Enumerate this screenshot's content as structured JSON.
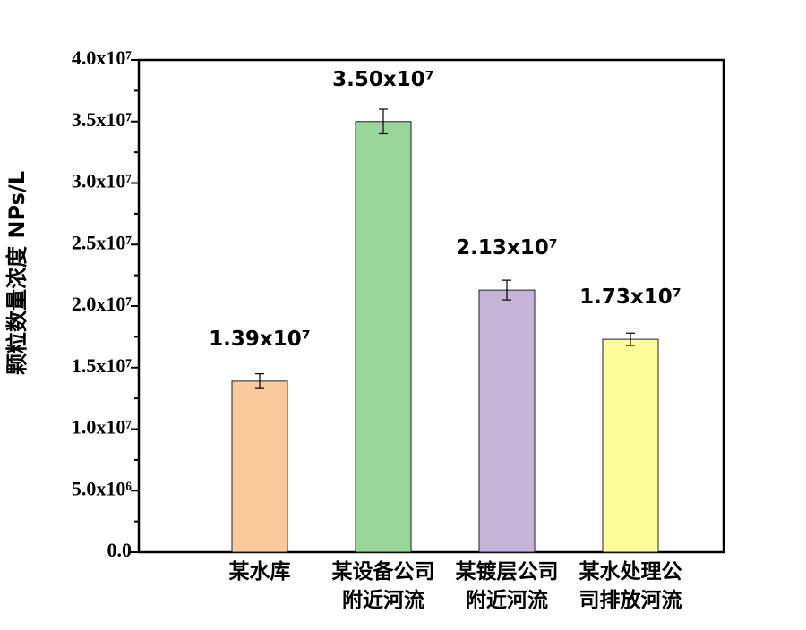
{
  "chart_data": {
    "type": "bar",
    "y_label": "颗粒数量浓度 NPs/L",
    "categories": [
      [
        "某水库"
      ],
      [
        "某设备公司",
        "附近河流"
      ],
      [
        "某镀层公司",
        "附近河流"
      ],
      [
        "某水处理公",
        "司排放河流"
      ]
    ],
    "values": [
      13900000,
      35000000,
      21300000,
      17300000
    ],
    "value_labels": [
      "1.39x10⁷",
      "3.50x10⁷",
      "2.13x10⁷",
      "1.73x10⁷"
    ],
    "errors": [
      600000,
      1000000,
      800000,
      500000
    ],
    "colors": [
      "#f9c89b",
      "#9ad69a",
      "#c5b4d8",
      "#fdfd9a"
    ],
    "ylim": [
      0,
      40000000
    ],
    "yticks": [
      {
        "value": 0,
        "label": "0.0"
      },
      {
        "value": 5000000,
        "label": "5.0x10⁶"
      },
      {
        "value": 10000000,
        "label": "1.0x10⁷"
      },
      {
        "value": 15000000,
        "label": "1.5x10⁷"
      },
      {
        "value": 20000000,
        "label": "2.0x10⁷"
      },
      {
        "value": 25000000,
        "label": "2.5x10⁷"
      },
      {
        "value": 30000000,
        "label": "3.0x10⁷"
      },
      {
        "value": 35000000,
        "label": "3.5x10⁷"
      },
      {
        "value": 40000000,
        "label": "4.0x10⁷"
      }
    ],
    "minor_yticks": [
      2500000,
      7500000,
      12500000,
      17500000,
      22500000,
      27500000,
      32500000,
      37500000
    ]
  }
}
